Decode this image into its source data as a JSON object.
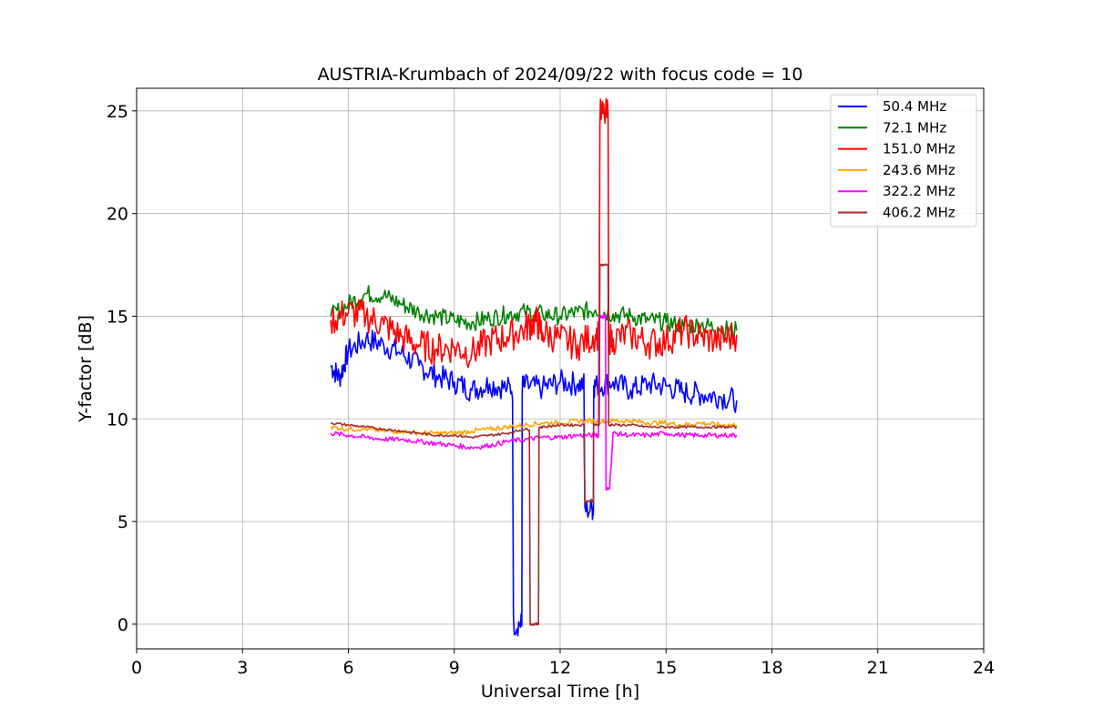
{
  "chart_data": {
    "type": "line",
    "title": "AUSTRIA-Krumbach of 2024/09/22 with focus code = 10",
    "xlabel": "Universal Time [h]",
    "ylabel": "Y-factor [dB]",
    "xlim": [
      0,
      24
    ],
    "ylim": [
      -1.2,
      26.1
    ],
    "xticks": [
      0,
      3,
      6,
      9,
      12,
      15,
      18,
      21,
      24
    ],
    "yticks": [
      0,
      5,
      10,
      15,
      20,
      25
    ],
    "grid": true,
    "legend_position": "top-right",
    "series": [
      {
        "name": " 50.4 MHz",
        "color": "#0000ff",
        "x": [
          5.5,
          5.75,
          6.0,
          6.5,
          7.0,
          7.5,
          8.0,
          8.5,
          9.0,
          9.5,
          10.0,
          10.5,
          10.85,
          11.0,
          11.5,
          12.0,
          12.5,
          12.9,
          13.0,
          13.5,
          14.0,
          14.5,
          15.0,
          15.5,
          16.0,
          16.5,
          17.0
        ],
        "y": [
          12.6,
          12.0,
          13.3,
          13.9,
          13.6,
          13.2,
          12.6,
          12.1,
          11.8,
          11.4,
          11.7,
          11.5,
          0.0,
          11.6,
          11.5,
          11.8,
          11.7,
          5.6,
          11.6,
          11.8,
          11.4,
          11.7,
          11.6,
          11.3,
          11.2,
          11.1,
          10.9
        ]
      },
      {
        "name": " 72.1 MHz",
        "color": "#008000",
        "x": [
          5.5,
          6.0,
          6.5,
          7.0,
          7.5,
          8.0,
          8.5,
          9.0,
          9.5,
          10.0,
          10.5,
          11.0,
          11.5,
          12.0,
          12.5,
          13.0,
          13.5,
          14.0,
          14.5,
          15.0,
          15.5,
          16.0,
          16.5,
          17.0
        ],
        "y": [
          15.0,
          15.6,
          16.1,
          16.0,
          15.6,
          15.2,
          15.0,
          14.8,
          14.7,
          14.9,
          15.1,
          15.2,
          15.1,
          15.0,
          15.2,
          15.3,
          15.1,
          15.0,
          14.8,
          14.7,
          14.5,
          14.6,
          14.4,
          14.3
        ]
      },
      {
        "name": " 151.0 MHz",
        "color": "#ff0000",
        "x": [
          5.5,
          6.0,
          6.5,
          7.0,
          7.5,
          8.0,
          8.5,
          9.0,
          9.5,
          10.0,
          10.5,
          11.0,
          11.3,
          11.5,
          12.0,
          12.5,
          13.0,
          13.25,
          13.5,
          14.0,
          14.5,
          15.0,
          15.5,
          16.0,
          16.5,
          17.0
        ],
        "y": [
          14.8,
          15.2,
          15.0,
          14.6,
          14.0,
          13.6,
          13.4,
          13.5,
          13.2,
          13.8,
          14.0,
          14.4,
          14.8,
          14.2,
          13.9,
          13.6,
          14.1,
          24.8,
          13.9,
          14.1,
          13.7,
          13.8,
          14.3,
          14.0,
          13.8,
          14.1
        ]
      },
      {
        "name": " 243.6 MHz",
        "color": "#ffa500",
        "x": [
          5.5,
          6.0,
          6.5,
          7.0,
          7.5,
          8.0,
          8.5,
          9.0,
          9.5,
          10.0,
          10.5,
          11.0,
          11.5,
          12.0,
          12.5,
          13.0,
          13.5,
          14.0,
          14.5,
          15.0,
          15.5,
          16.0,
          16.5,
          17.0
        ],
        "y": [
          9.6,
          9.5,
          9.5,
          9.4,
          9.4,
          9.3,
          9.3,
          9.3,
          9.4,
          9.5,
          9.6,
          9.7,
          9.8,
          9.8,
          9.9,
          9.9,
          9.9,
          9.9,
          9.8,
          9.8,
          9.7,
          9.8,
          9.7,
          9.7
        ]
      },
      {
        "name": " 322.2 MHz",
        "color": "#ff00ff",
        "x": [
          5.5,
          6.0,
          6.5,
          7.0,
          7.5,
          8.0,
          8.5,
          9.0,
          9.5,
          10.0,
          10.5,
          11.0,
          11.5,
          12.0,
          12.5,
          13.0,
          13.2,
          13.4,
          13.5,
          14.0,
          14.5,
          15.0,
          15.5,
          16.0,
          16.5,
          17.0
        ],
        "y": [
          9.3,
          9.2,
          9.1,
          9.0,
          9.0,
          8.9,
          8.8,
          8.7,
          8.6,
          8.7,
          8.9,
          9.0,
          9.1,
          9.1,
          9.2,
          9.2,
          15.0,
          6.6,
          9.3,
          9.2,
          9.2,
          9.3,
          9.2,
          9.2,
          9.2,
          9.2
        ]
      },
      {
        "name": " 406.2 MHz",
        "color": "#a52a2a",
        "x": [
          5.5,
          6.0,
          6.5,
          7.0,
          7.5,
          8.0,
          8.5,
          9.0,
          9.5,
          10.0,
          10.5,
          11.0,
          11.3,
          11.5,
          12.0,
          12.5,
          12.9,
          13.0,
          13.25,
          13.5,
          14.0,
          14.5,
          15.0,
          15.5,
          16.0,
          16.5,
          17.0
        ],
        "y": [
          9.8,
          9.7,
          9.6,
          9.5,
          9.4,
          9.3,
          9.2,
          9.2,
          9.1,
          9.2,
          9.3,
          9.5,
          0.0,
          9.6,
          9.7,
          9.7,
          6.0,
          9.7,
          17.5,
          9.7,
          9.7,
          9.6,
          9.6,
          9.6,
          9.6,
          9.6,
          9.6
        ]
      }
    ]
  }
}
